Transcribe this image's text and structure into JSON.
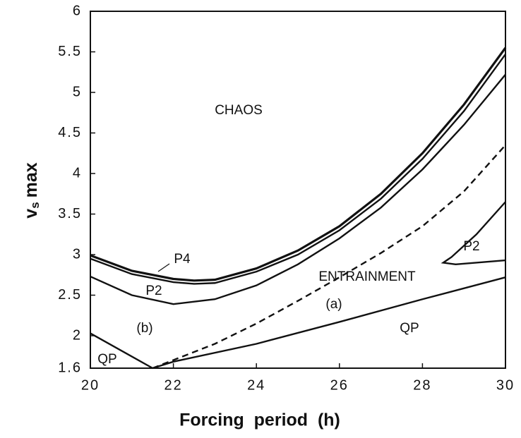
{
  "chart_data": {
    "type": "line",
    "x_label": "Forcing  period  (h)",
    "y_label": [
      "v",
      "s",
      "max"
    ],
    "xlim": [
      20,
      30
    ],
    "xticks": [
      20,
      22,
      24,
      26,
      28,
      30
    ],
    "ylim": [
      1.6,
      6
    ],
    "yticks": [
      1.6,
      2,
      2.5,
      3,
      3.5,
      4,
      4.5,
      5,
      5.5,
      6
    ],
    "color": "#111111",
    "series": [
      {
        "x": [
          20,
          21,
          22,
          22.5,
          23,
          24,
          25,
          26,
          27,
          28,
          29,
          30
        ],
        "values": [
          2.99,
          2.8,
          2.7,
          2.68,
          2.69,
          2.83,
          3.05,
          3.35,
          3.75,
          4.25,
          4.85,
          5.55
        ],
        "style": "solid"
      },
      {
        "x": [
          20,
          21,
          22,
          22.5,
          23,
          24,
          25,
          26,
          27,
          28,
          29,
          30
        ],
        "values": [
          2.95,
          2.76,
          2.66,
          2.64,
          2.65,
          2.79,
          3.0,
          3.3,
          3.69,
          4.18,
          4.77,
          5.47
        ],
        "style": "solid"
      },
      {
        "x": [
          20,
          21,
          22,
          23,
          24,
          25,
          26,
          27,
          28,
          29,
          30
        ],
        "values": [
          2.73,
          2.5,
          2.39,
          2.45,
          2.62,
          2.88,
          3.2,
          3.58,
          4.05,
          4.6,
          5.22
        ],
        "style": "solid"
      },
      {
        "x": [
          21.5,
          23,
          24,
          25,
          26,
          27,
          28,
          29,
          30
        ],
        "values": [
          1.6,
          1.9,
          2.15,
          2.43,
          2.72,
          3.02,
          3.35,
          3.78,
          4.35
        ],
        "style": "dashed"
      },
      {
        "x": [
          21.5,
          22,
          24,
          26,
          28,
          30
        ],
        "values": [
          1.6,
          1.68,
          1.9,
          2.17,
          2.45,
          2.72
        ],
        "style": "solid"
      },
      {
        "x": [
          20,
          21.5
        ],
        "values": [
          2.03,
          1.6
        ],
        "style": "solid"
      },
      {
        "x": [
          30,
          29.3,
          28.7,
          28.5,
          28.8,
          30
        ],
        "values": [
          3.65,
          3.25,
          2.97,
          2.9,
          2.88,
          2.93
        ],
        "style": "solid"
      }
    ],
    "annotations": [
      "CHAOS",
      "P4",
      "P2",
      "ENTRAINMENT",
      "(a)",
      "(b)",
      "QP",
      "QP",
      "P2"
    ]
  }
}
